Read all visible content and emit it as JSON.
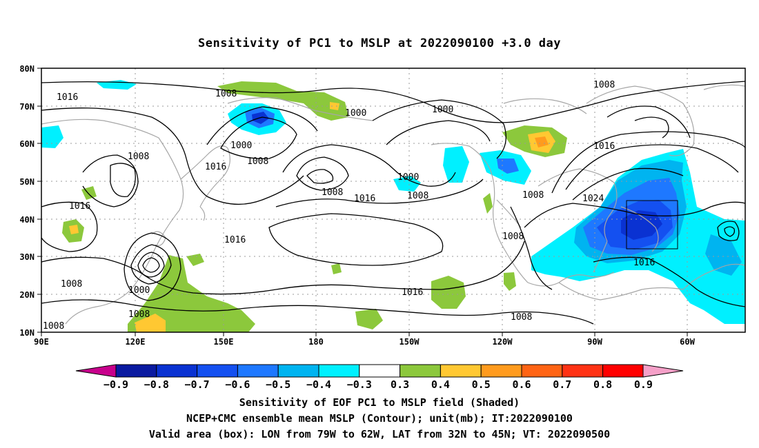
{
  "title": "Sensitivity of PC1 to MSLP at 2022090100 +3.0 day",
  "lat_ticks": [
    "10N",
    "20N",
    "30N",
    "40N",
    "50N",
    "60N",
    "70N",
    "80N"
  ],
  "lon_ticks": [
    "90E",
    "120E",
    "150E",
    "180",
    "150W",
    "120W",
    "90W",
    "60W"
  ],
  "contour_labels": [
    {
      "text": "1016"
    },
    {
      "text": "1008"
    },
    {
      "text": "1000"
    },
    {
      "text": "1000"
    },
    {
      "text": "1000"
    },
    {
      "text": "1008"
    },
    {
      "text": "1008"
    },
    {
      "text": "1016"
    },
    {
      "text": "1008"
    },
    {
      "text": "1016"
    },
    {
      "text": "1000"
    },
    {
      "text": "1008"
    },
    {
      "text": "1016"
    },
    {
      "text": "1008"
    },
    {
      "text": "1016"
    },
    {
      "text": "1008"
    },
    {
      "text": "1024"
    },
    {
      "text": "1008"
    },
    {
      "text": "1016"
    },
    {
      "text": "1016"
    },
    {
      "text": "1008"
    },
    {
      "text": "1000"
    },
    {
      "text": "1008"
    },
    {
      "text": "1008"
    },
    {
      "text": "1016"
    }
  ],
  "colorbar": {
    "labels": [
      "−0.9",
      "−0.8",
      "−0.7",
      "−0.6",
      "−0.5",
      "−0.4",
      "−0.3",
      "0.3",
      "0.4",
      "0.5",
      "0.6",
      "0.7",
      "0.8",
      "0.9"
    ],
    "colors": [
      "#c8008c",
      "#0a1aa0",
      "#0a32d2",
      "#1450f0",
      "#1e78ff",
      "#00b4f0",
      "#00f0ff",
      "#ffffff",
      "#8cc83c",
      "#ffc832",
      "#ff9b1e",
      "#ff6414",
      "#ff3214",
      "#ff0000",
      "#f5a0c8"
    ]
  },
  "captions": [
    "Sensitivity of EOF PC1 to MSLP field (Shaded)",
    "NCEP+CMC ensemble mean MSLP (Contour); unit(mb); IT:2022090100",
    "Valid area (box): LON from 79W to 62W, LAT from 32N to 45N; VT: 2022090500"
  ]
}
